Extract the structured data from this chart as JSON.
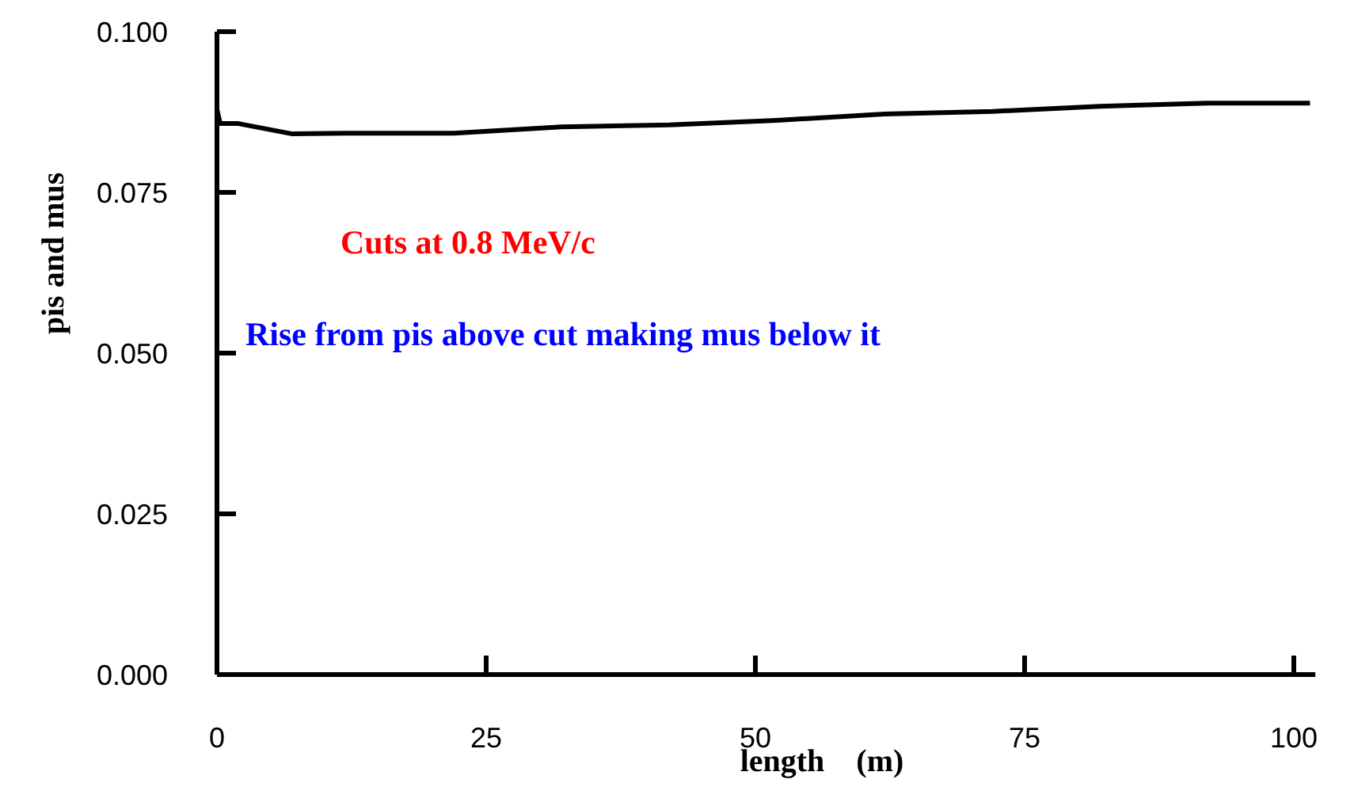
{
  "chart_data": {
    "type": "line",
    "xlabel": "length    (m)",
    "ylabel": "pis and mus",
    "annotations": [
      "Cuts at 0.8 MeV/c",
      "Rise from pis above cut making mus below it"
    ],
    "x": [
      0,
      0.3,
      2,
      7,
      12,
      22,
      32,
      42,
      52,
      62,
      72,
      82,
      92,
      101.5
    ],
    "series": [
      {
        "color": "#000000",
        "values": [
          0.0879,
          0.0857,
          0.0857,
          0.0841,
          0.0842,
          0.0842,
          0.0852,
          0.0855,
          0.0862,
          0.0872,
          0.0876,
          0.0884,
          0.0889,
          0.0889
        ]
      }
    ],
    "xlim": [
      0,
      102
    ],
    "xticks": [
      0,
      25,
      50,
      75,
      100
    ],
    "ylim": [
      0,
      0.1
    ],
    "yticks": [
      {
        "value": 0,
        "label": "0.000"
      },
      {
        "value": 0.025,
        "label": "0.025"
      },
      {
        "value": 0.05,
        "label": "0.050"
      },
      {
        "value": 0.075,
        "label": "0.075"
      },
      {
        "value": 0.1,
        "label": "0.100"
      }
    ],
    "grid": false,
    "marker": "none",
    "line_style": "solid"
  }
}
